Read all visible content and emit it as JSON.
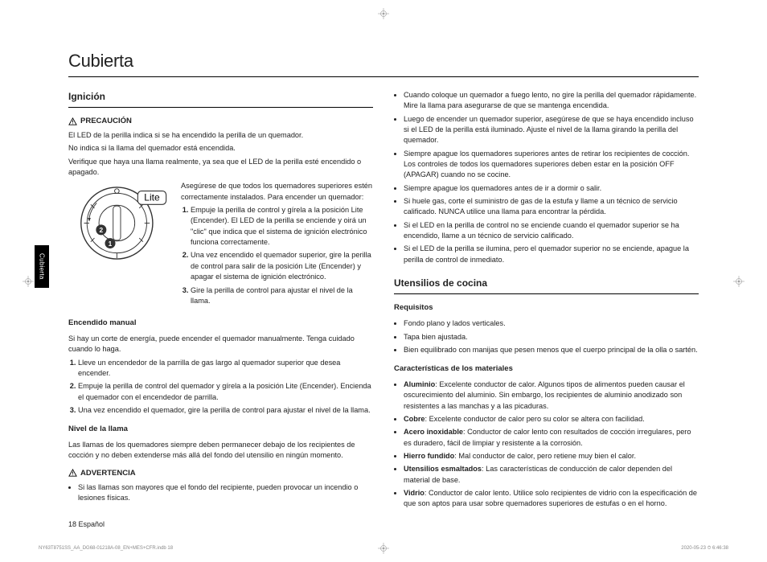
{
  "title": "Cubierta",
  "side_tab": "Cubierta",
  "footer_page": "18  Español",
  "footer_left": "NY63T8751SS_AA_DG68-01218A-08_EN+MES+CFR.indb   18",
  "footer_right": "2020-05-23   ⏱ 6:46:38",
  "left": {
    "ignition_heading": "Ignición",
    "precaution_label": "PRECAUCIÓN",
    "led_p1": "El LED de la perilla indica si se ha encendido la perilla de un quemador.",
    "led_p2": "No indica si la llama del quemador está encendida.",
    "led_p3": "Verifique que haya una llama realmente, ya sea que el LED de la perilla esté encendido o apagado.",
    "knob_label": "Lite",
    "ignite_intro": "Asegúrese de que todos los quemadores superiores estén correctamente instalados. Para encender un quemador:",
    "ignite_steps": [
      "Empuje la perilla de control y gírela a la posición Lite (Encender). El LED de la perilla se enciende y oirá un \"clic\" que indica que el sistema de ignición electrónico funciona correctamente.",
      "Una vez encendido el quemador superior, gire la perilla de control para salir de la posición Lite (Encender) y apagar el sistema de ignición electrónico.",
      "Gire la perilla de control para ajustar el nivel de la llama."
    ],
    "manual_heading": "Encendido manual",
    "manual_intro": "Si hay un corte de energía, puede encender el quemador manualmente. Tenga cuidado cuando lo haga.",
    "manual_steps": [
      "Lleve un encendedor de la parrilla de gas largo al quemador superior que desea encender.",
      "Empuje la perilla de control del quemador y gírela a la posición Lite (Encender). Encienda el quemador con el encendedor de parrilla.",
      "Una vez encendido el quemador, gire la perilla de control para ajustar el nivel de la llama."
    ],
    "flame_heading": "Nivel de la llama",
    "flame_p": "Las llamas de los quemadores siempre deben permanecer debajo de los recipientes de cocción y no deben extenderse más allá del fondo del utensilio en ningún momento.",
    "warning_label": "ADVERTENCIA",
    "warning_item": "Si las llamas son mayores que el fondo del recipiente, pueden provocar un incendio o lesiones físicas."
  },
  "right": {
    "warn_items": [
      "Cuando coloque un quemador a fuego lento, no gire la perilla del quemador rápidamente. Mire la llama para asegurarse de que se mantenga encendida.",
      "Luego de encender un quemador superior, asegúrese de que se haya encendido incluso si el LED de la perilla está iluminado. Ajuste el nivel de la llama girando la perilla del quemador.",
      "Siempre apague los quemadores superiores antes de retirar los recipientes de cocción. Los controles de todos los quemadores superiores deben estar en la posición OFF (APAGAR) cuando no se cocine.",
      "Siempre apague los quemadores antes de ir a dormir o salir.",
      "Si huele gas, corte el suministro de gas de la estufa y llame a un técnico de servicio calificado. NUNCA utilice una llama para encontrar la pérdida.",
      "Si el LED en la perilla de control no se enciende cuando el quemador superior se ha encendido, llame a un técnico de servicio calificado.",
      "Si el LED de la perilla se ilumina, pero el quemador superior no se enciende, apague la perilla de control de inmediato."
    ],
    "utensils_heading": "Utensilios de cocina",
    "req_heading": "Requisitos",
    "req_items": [
      "Fondo plano y lados verticales.",
      "Tapa bien ajustada.",
      "Bien equilibrado con manijas que pesen menos que el cuerpo principal de la olla o sartén."
    ],
    "mat_heading": "Características de los materiales",
    "materials": [
      {
        "name": "Aluminio",
        "text": ": Excelente conductor de calor. Algunos tipos de alimentos pueden causar el oscurecimiento del aluminio. Sin embargo, los recipientes de aluminio anodizado son resistentes a las manchas y a las picaduras."
      },
      {
        "name": "Cobre",
        "text": ": Excelente conductor de calor pero su color se altera con facilidad."
      },
      {
        "name": "Acero inoxidable",
        "text": ": Conductor de calor lento con resultados de cocción irregulares, pero es duradero, fácil de limpiar y resistente a la corrosión."
      },
      {
        "name": "Hierro fundido",
        "text": ": Mal conductor de calor, pero retiene muy bien el calor."
      },
      {
        "name": "Utensilios esmaltados",
        "text": ": Las características de conducción de calor dependen del material de base."
      },
      {
        "name": "Vidrio",
        "text": ": Conductor de calor lento. Utilice solo recipientes de vidrio con la especificación de que son aptos para usar sobre quemadores superiores de estufas o en el horno."
      }
    ]
  }
}
